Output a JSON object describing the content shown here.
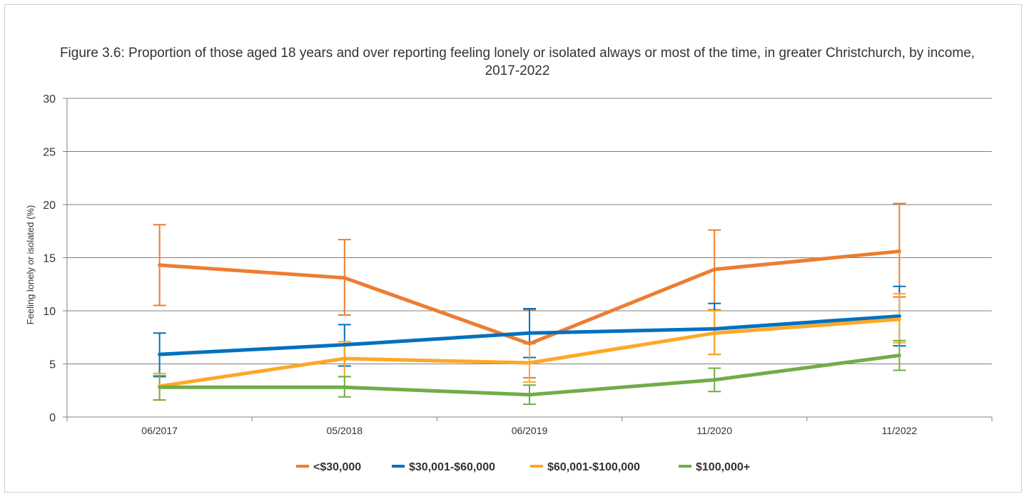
{
  "chart_data": {
    "type": "line",
    "title": "Figure 3.6: Proportion of those aged 18 years and over reporting feeling lonely or isolated always or most of the time, in greater Christchurch, by income, 2017-2022",
    "xlabel": "",
    "ylabel": "Feeling lonely or isolated (%)",
    "categories": [
      "06/2017",
      "05/2018",
      "06/2019",
      "11/2020",
      "11/2022"
    ],
    "ylim": [
      0,
      30
    ],
    "yticks": [
      0,
      5,
      10,
      15,
      20,
      25,
      30
    ],
    "grid": true,
    "legend_position": "bottom",
    "error_bars": true,
    "series": [
      {
        "name": "<$30,000",
        "color": "#ED7D31",
        "values": [
          14.3,
          13.1,
          6.9,
          13.9,
          15.6
        ],
        "lower": [
          10.5,
          9.6,
          3.7,
          10.1,
          11.3
        ],
        "upper": [
          18.1,
          16.7,
          10.1,
          17.6,
          20.1
        ]
      },
      {
        "name": "$30,001-$60,000",
        "color": "#0070C0",
        "values": [
          5.9,
          6.8,
          7.9,
          8.3,
          9.5
        ],
        "lower": [
          3.8,
          4.8,
          5.6,
          5.9,
          6.7
        ],
        "upper": [
          7.9,
          8.7,
          10.2,
          10.7,
          12.3
        ]
      },
      {
        "name": "$60,001-$100,000",
        "color": "#FFA726",
        "values": [
          2.9,
          5.5,
          5.1,
          7.9,
          9.2
        ],
        "lower": [
          1.6,
          3.8,
          3.3,
          5.9,
          7.0
        ],
        "upper": [
          4.1,
          7.1,
          6.9,
          10.0,
          11.6
        ]
      },
      {
        "name": "$100,000+",
        "color": "#70AD47",
        "values": [
          2.8,
          2.8,
          2.1,
          3.5,
          5.8
        ],
        "lower": [
          1.6,
          1.9,
          1.2,
          2.4,
          4.4
        ],
        "upper": [
          3.9,
          3.8,
          3.0,
          4.6,
          7.2
        ]
      }
    ]
  }
}
